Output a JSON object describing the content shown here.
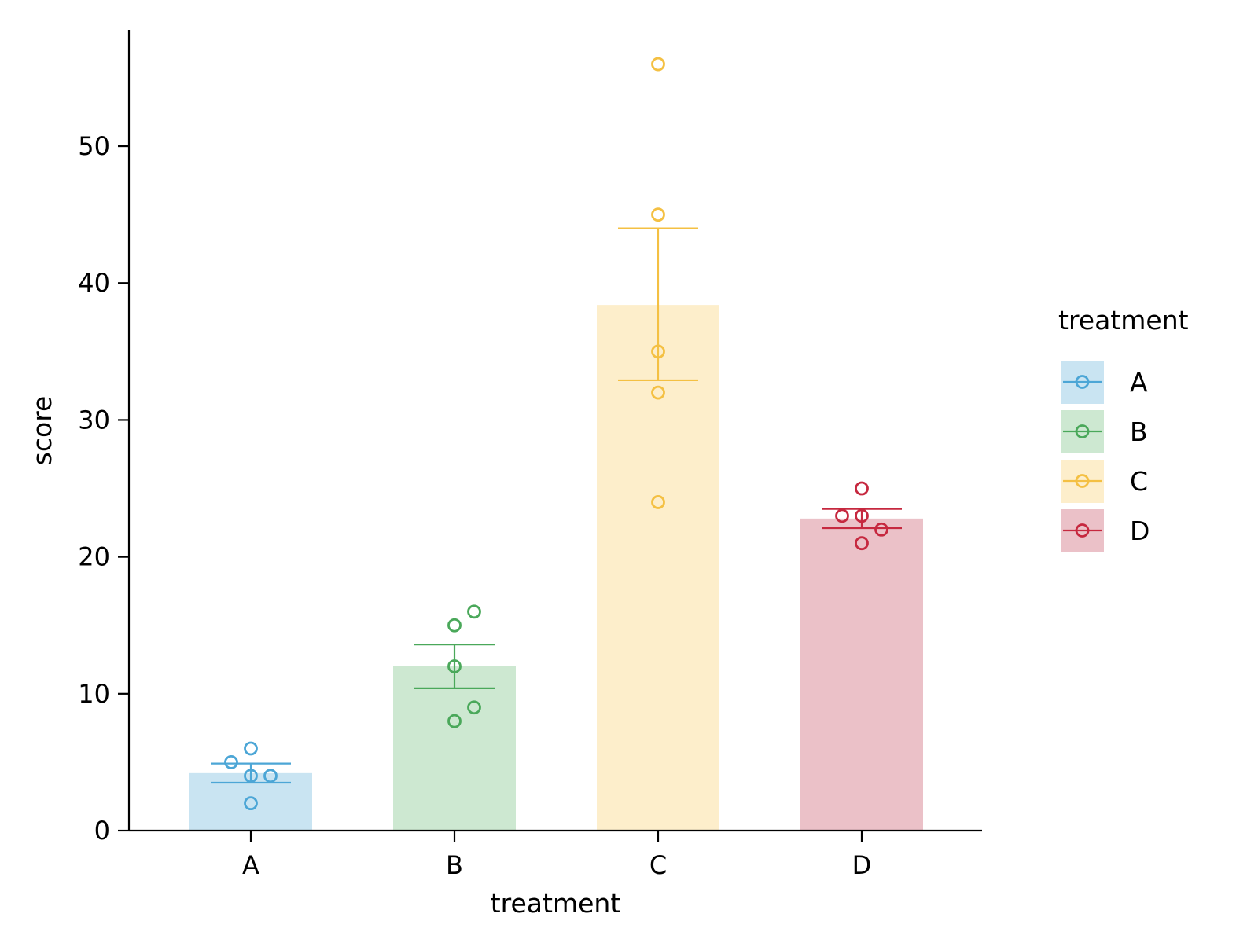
{
  "chart_data": {
    "type": "bar",
    "xlabel": "treatment",
    "ylabel": "score",
    "categories": [
      "A",
      "B",
      "C",
      "D"
    ],
    "ylim": [
      0,
      58.5
    ],
    "yticks": [
      0,
      10,
      20,
      30,
      40,
      50
    ],
    "ytick_labels": [
      "0",
      "10",
      "20",
      "30",
      "40",
      "50"
    ],
    "grid": false,
    "legend": {
      "title": "treatment",
      "position": "right",
      "entries": [
        "A",
        "B",
        "C",
        "D"
      ]
    },
    "series": [
      {
        "category": "A",
        "mean": 4.2,
        "error_low": 3.5,
        "error_high": 4.9,
        "color": "#4ca6d6",
        "bar_color": "#c9e4f2",
        "points": [
          {
            "offset": 0,
            "y": 6
          },
          {
            "offset": -1,
            "y": 5
          },
          {
            "offset": 0,
            "y": 4
          },
          {
            "offset": 1,
            "y": 4
          },
          {
            "offset": 0,
            "y": 2
          }
        ]
      },
      {
        "category": "B",
        "mean": 12.0,
        "error_low": 10.4,
        "error_high": 13.6,
        "color": "#4aa85a",
        "bar_color": "#cde8d1",
        "points": [
          {
            "offset": 1,
            "y": 16
          },
          {
            "offset": 0,
            "y": 15
          },
          {
            "offset": 0,
            "y": 12
          },
          {
            "offset": 1,
            "y": 9
          },
          {
            "offset": 0,
            "y": 8
          }
        ]
      },
      {
        "category": "C",
        "mean": 38.4,
        "error_low": 32.9,
        "error_high": 44.0,
        "color": "#f4c043",
        "bar_color": "#fdeecb",
        "points": [
          {
            "offset": 0,
            "y": 56
          },
          {
            "offset": 0,
            "y": 45
          },
          {
            "offset": 0,
            "y": 35
          },
          {
            "offset": 0,
            "y": 32
          },
          {
            "offset": 0,
            "y": 24
          }
        ]
      },
      {
        "category": "D",
        "mean": 22.8,
        "error_low": 22.1,
        "error_high": 23.5,
        "color": "#c6283f",
        "bar_color": "#ebc1c8",
        "points": [
          {
            "offset": 0,
            "y": 25
          },
          {
            "offset": -1,
            "y": 23
          },
          {
            "offset": 0,
            "y": 23
          },
          {
            "offset": 1,
            "y": 22
          },
          {
            "offset": 0,
            "y": 21
          }
        ]
      }
    ]
  }
}
